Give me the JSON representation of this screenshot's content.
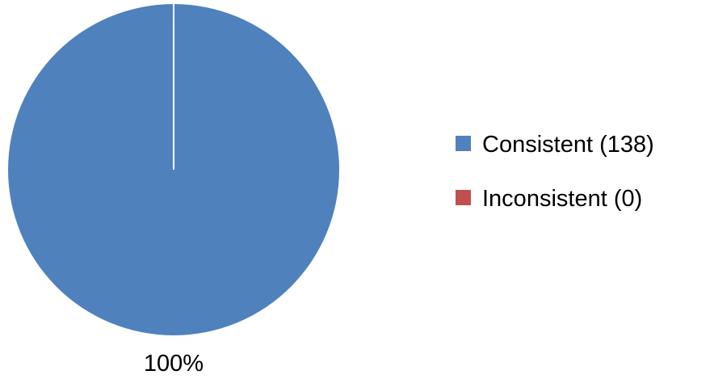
{
  "chart_data": {
    "type": "pie",
    "title": "",
    "categories": [
      "Consistent (138)",
      "Inconsistent (0)"
    ],
    "values": [
      138,
      0
    ],
    "colors": [
      "#4f81bd",
      "#c0504d"
    ],
    "data_labels": [
      "100%",
      ""
    ],
    "legend": {
      "placement": "right",
      "entries": [
        "Consistent (138)",
        "Inconsistent (0)"
      ]
    }
  }
}
